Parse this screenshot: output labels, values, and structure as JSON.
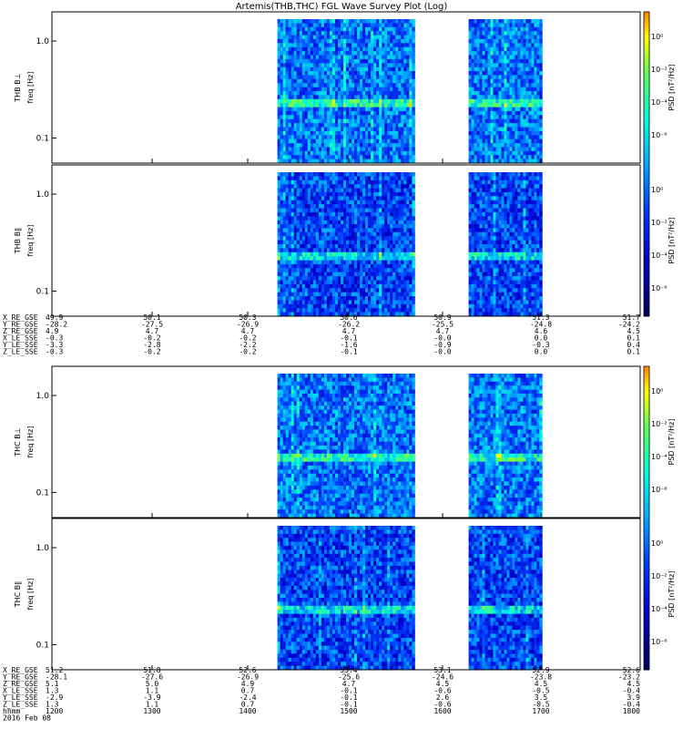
{
  "chart_data": {
    "type": "heatmap",
    "title": "Artemis(THB,THC) FGL Wave Survey Plot (Log)",
    "yscale": "log",
    "ylim": [
      0.055,
      2.0
    ],
    "ytick_labels": [
      "1.0",
      "0.1"
    ],
    "ytick_values": [
      1.0,
      0.1
    ],
    "colorbar": {
      "label": "PSD [nT²/Hz]",
      "scale": "log",
      "tick_labels": [
        "10⁰",
        "10⁻²",
        "10⁻⁴",
        "10⁻⁶"
      ],
      "colors": [
        "#000000",
        "#000080",
        "#0000ff",
        "#0080ff",
        "#00ffff",
        "#00ff80",
        "#ffff00",
        "#ff8000",
        "#ff0000",
        "#a00000"
      ]
    },
    "groups": [
      {
        "panels": [
          {
            "probe_label": "THB B⊥",
            "ylabel": "freq [Hz]",
            "data_intervals": [
              [
                1430,
                1570
              ],
              [
                1625,
                1700
              ]
            ],
            "bright_bands": [
              0.25
            ]
          },
          {
            "probe_label": "THB B∥",
            "ylabel": "freq [Hz]",
            "data_intervals": [
              [
                1430,
                1570
              ],
              [
                1625,
                1700
              ]
            ],
            "bright_bands": [
              0.25
            ]
          }
        ],
        "ephemeris": [
          {
            "label": "X_RE_GSE",
            "values": [
              "49.9",
              "50.1",
              "50.3",
              "50.6",
              "50.9",
              "51.3",
              "51.7"
            ]
          },
          {
            "label": "Y_RE_GSE",
            "values": [
              "-28.2",
              "-27.5",
              "-26.9",
              "-26.2",
              "-25.5",
              "-24.8",
              "-24.2"
            ]
          },
          {
            "label": "Z_RE_GSE",
            "values": [
              "4.9",
              "4.7",
              "4.7",
              "4.7",
              "4.7",
              "4.6",
              "4.5"
            ]
          },
          {
            "label": "X_LE_SSE",
            "values": [
              "-0.3",
              "-0.2",
              "-0.2",
              "-0.1",
              "-0.0",
              "0.0",
              "0.1"
            ]
          },
          {
            "label": "Y_LE_SSE",
            "values": [
              "-3.3",
              "-2.8",
              "-2.2",
              "-1.6",
              "-0.9",
              "-0.3",
              "0.4"
            ]
          },
          {
            "label": "Z_LE_SSE",
            "values": [
              "-0.3",
              "-0.2",
              "-0.2",
              "-0.1",
              "-0.0",
              "0.0",
              "0.1"
            ]
          }
        ]
      },
      {
        "panels": [
          {
            "probe_label": "THC B⊥",
            "ylabel": "freq [Hz]",
            "data_intervals": [
              [
                1430,
                1570
              ],
              [
                1625,
                1700
              ]
            ],
            "bright_bands": [
              0.25
            ]
          },
          {
            "probe_label": "THC B∥",
            "ylabel": "freq [Hz]",
            "data_intervals": [
              [
                1430,
                1570
              ],
              [
                1625,
                1700
              ]
            ],
            "bright_bands": [
              0.25
            ]
          }
        ],
        "ephemeris": [
          {
            "label": "X_RE_GSE",
            "values": [
              "51.2",
              "51.8",
              "52.6",
              "53.4",
              "53.1",
              "52.9",
              "52.6"
            ]
          },
          {
            "label": "Y_RE_GSE",
            "values": [
              "-28.1",
              "-27.6",
              "-26.9",
              "-25.6",
              "-24.6",
              "-23.8",
              "-23.2"
            ]
          },
          {
            "label": "Z_RE_GSE",
            "values": [
              "5.1",
              "5.0",
              "4.9",
              "4.7",
              "4.5",
              "4.5",
              "4.5"
            ]
          },
          {
            "label": "X_LE_SSE",
            "values": [
              "1.3",
              "1.1",
              "0.7",
              "-0.1",
              "-0.6",
              "-0.5",
              "-0.4"
            ]
          },
          {
            "label": "Y_LE_SSE",
            "values": [
              "-2.9",
              "-3.9",
              "-2.4",
              "-0.1",
              "2.6",
              "3.5",
              "3.9"
            ]
          },
          {
            "label": "Z_LE_SSE",
            "values": [
              "1.3",
              "1.1",
              "0.7",
              "-0.1",
              "-0.6",
              "-0.5",
              "-0.4"
            ]
          }
        ],
        "time_axis": {
          "label": "hhmm",
          "values": [
            "1200",
            "1300",
            "1400",
            "1500",
            "1600",
            "1700",
            "1800"
          ],
          "date": "2016 Feb 08"
        }
      }
    ],
    "xlim": [
      1200,
      1800
    ]
  }
}
